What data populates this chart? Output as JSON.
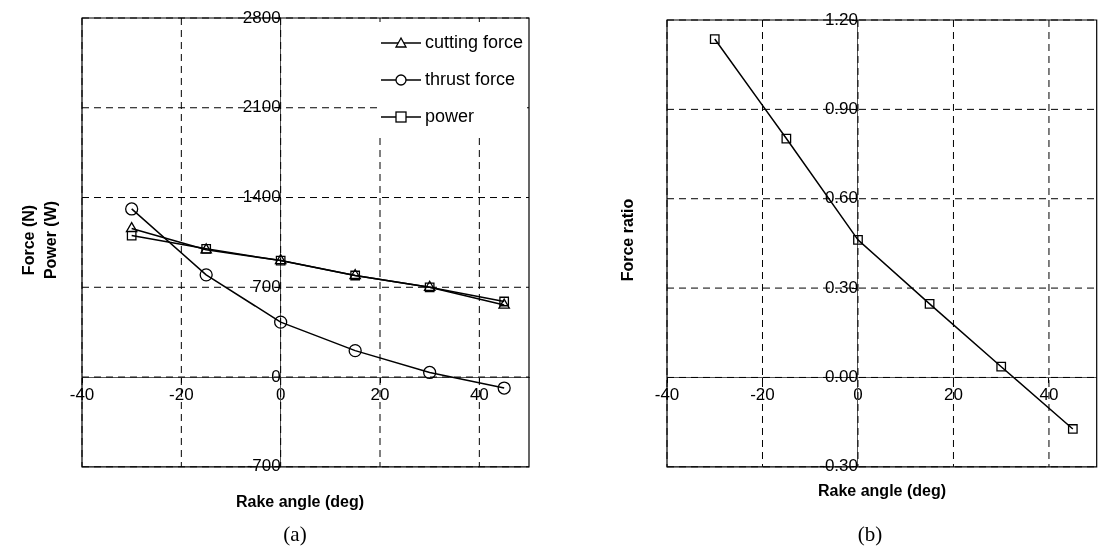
{
  "chart_data": [
    {
      "type": "line",
      "xlabel": "Rake angle (deg)",
      "ylabel": "Force (N)\nPower (W)",
      "annotations": [
        "(a)"
      ],
      "x": [
        -30,
        -15,
        0,
        15,
        30,
        45
      ],
      "series": [
        {
          "name": "cutting force",
          "color": "#000000",
          "marker": "triangle",
          "values": [
            1158,
            992,
            908,
            792,
            700,
            561
          ]
        },
        {
          "name": "thrust force",
          "color": "#000000",
          "marker": "circle",
          "values": [
            1311,
            797,
            428,
            206,
            36,
            -86
          ]
        },
        {
          "name": "power",
          "color": "#000000",
          "marker": "square",
          "values": [
            1103,
            1000,
            908,
            792,
            700,
            589
          ]
        }
      ],
      "xlim": [
        -40,
        50
      ],
      "xticks": [
        -40,
        -20,
        0,
        20,
        40
      ],
      "ylim": [
        -700,
        2800
      ],
      "yticks": [
        -700,
        0,
        700,
        1400,
        2100,
        2800
      ],
      "grid": true,
      "legend": "top right",
      "line_style": "solid"
    },
    {
      "type": "line",
      "xlabel": "Rake angle (deg)",
      "ylabel": "Force ratio",
      "annotations": [
        "(b)"
      ],
      "x": [
        -30,
        -15,
        0,
        15,
        30,
        45
      ],
      "series": [
        {
          "color": "#000000",
          "marker": "square",
          "values": [
            1.136,
            0.802,
            0.462,
            0.247,
            0.036,
            -0.173
          ]
        }
      ],
      "xlim": [
        -40,
        50
      ],
      "xticks": [
        -40,
        -20,
        0,
        20,
        40
      ],
      "ylim": [
        -0.3,
        1.2
      ],
      "yticks": [
        {
          "value": -0.3,
          "label": "-0.30"
        },
        {
          "value": 0,
          "label": "0.00"
        },
        {
          "value": 0.3,
          "label": "0.30"
        },
        {
          "value": 0.6,
          "label": "0.60"
        },
        {
          "value": 0.9,
          "label": "0.90"
        },
        {
          "value": 1.2,
          "label": "1.20"
        }
      ],
      "grid": true,
      "legend": false,
      "line_style": "solid"
    }
  ]
}
